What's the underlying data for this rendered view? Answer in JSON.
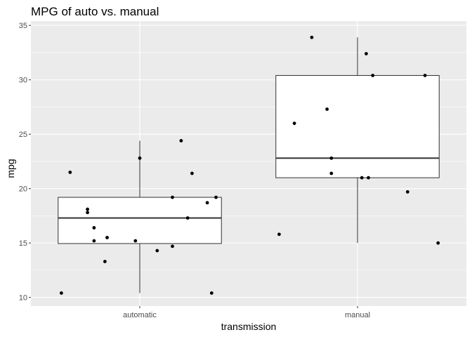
{
  "chart_data": {
    "type": "box",
    "title": "MPG of auto vs. manual",
    "xlabel": "transmission",
    "ylabel": "mpg",
    "categories": [
      "automatic",
      "manual"
    ],
    "ylim": [
      9.2,
      35.4
    ],
    "yticks": [
      10,
      15,
      20,
      25,
      30,
      35
    ],
    "ytick_labels": [
      "10",
      "15",
      "20",
      "25",
      "30",
      "35"
    ],
    "grid": true,
    "background": "#ebebeb",
    "grid_color": "#ffffff",
    "boxes": [
      {
        "category": "automatic",
        "whisker_low": 10.4,
        "q1": 14.95,
        "median": 17.3,
        "q3": 19.2,
        "whisker_high": 24.4
      },
      {
        "category": "manual",
        "whisker_low": 15.0,
        "q1": 21.0,
        "median": 22.8,
        "q3": 30.4,
        "whisker_high": 33.9
      }
    ],
    "points": [
      {
        "category": "automatic",
        "jitter": -0.36,
        "mpg": 10.4
      },
      {
        "category": "automatic",
        "jitter": 0.33,
        "mpg": 10.4
      },
      {
        "category": "automatic",
        "jitter": -0.16,
        "mpg": 13.3
      },
      {
        "category": "automatic",
        "jitter": 0.08,
        "mpg": 14.3
      },
      {
        "category": "automatic",
        "jitter": 0.15,
        "mpg": 14.7
      },
      {
        "category": "automatic",
        "jitter": -0.21,
        "mpg": 15.2
      },
      {
        "category": "automatic",
        "jitter": -0.02,
        "mpg": 15.2
      },
      {
        "category": "automatic",
        "jitter": -0.15,
        "mpg": 15.5
      },
      {
        "category": "automatic",
        "jitter": -0.21,
        "mpg": 16.4
      },
      {
        "category": "automatic",
        "jitter": 0.22,
        "mpg": 17.3
      },
      {
        "category": "automatic",
        "jitter": -0.24,
        "mpg": 17.8
      },
      {
        "category": "automatic",
        "jitter": -0.24,
        "mpg": 18.1
      },
      {
        "category": "automatic",
        "jitter": 0.31,
        "mpg": 18.7
      },
      {
        "category": "automatic",
        "jitter": 0.35,
        "mpg": 19.2
      },
      {
        "category": "automatic",
        "jitter": 0.15,
        "mpg": 19.2
      },
      {
        "category": "automatic",
        "jitter": 0.24,
        "mpg": 21.4
      },
      {
        "category": "automatic",
        "jitter": -0.32,
        "mpg": 21.5
      },
      {
        "category": "automatic",
        "jitter": 0.0,
        "mpg": 22.8
      },
      {
        "category": "automatic",
        "jitter": 0.19,
        "mpg": 24.4
      },
      {
        "category": "manual",
        "jitter": -0.36,
        "mpg": 15.8
      },
      {
        "category": "manual",
        "jitter": 0.37,
        "mpg": 15.0
      },
      {
        "category": "manual",
        "jitter": 0.23,
        "mpg": 19.7
      },
      {
        "category": "manual",
        "jitter": 0.02,
        "mpg": 21.0
      },
      {
        "category": "manual",
        "jitter": 0.05,
        "mpg": 21.0
      },
      {
        "category": "manual",
        "jitter": -0.12,
        "mpg": 21.4
      },
      {
        "category": "manual",
        "jitter": -0.12,
        "mpg": 22.8
      },
      {
        "category": "manual",
        "jitter": -0.29,
        "mpg": 26.0
      },
      {
        "category": "manual",
        "jitter": -0.14,
        "mpg": 27.3
      },
      {
        "category": "manual",
        "jitter": 0.07,
        "mpg": 30.4
      },
      {
        "category": "manual",
        "jitter": 0.31,
        "mpg": 30.4
      },
      {
        "category": "manual",
        "jitter": 0.04,
        "mpg": 32.4
      },
      {
        "category": "manual",
        "jitter": -0.21,
        "mpg": 33.9
      }
    ]
  }
}
